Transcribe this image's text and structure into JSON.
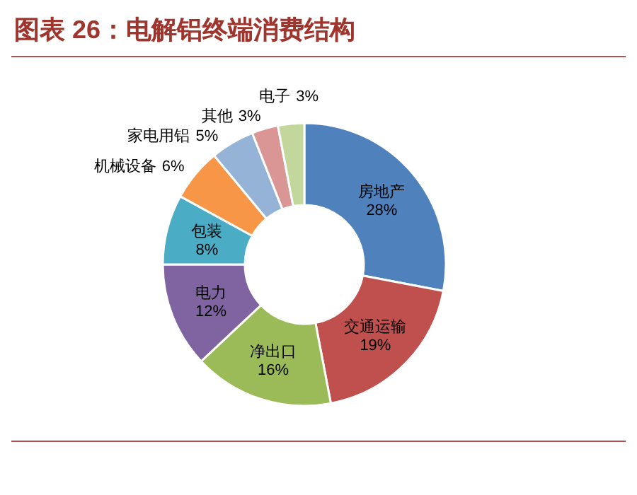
{
  "chart_data": {
    "type": "donut",
    "title": "图表 26：电解铝终端消费结构",
    "categories": [
      "房地产",
      "交通运输",
      "净出口",
      "电力",
      "包装",
      "机械设备",
      "家电用铝",
      "其他",
      "电子"
    ],
    "values": [
      28,
      19,
      16,
      12,
      8,
      6,
      5,
      3,
      3
    ],
    "colors": [
      "#4f81bd",
      "#c0504d",
      "#9bbb59",
      "#8064a2",
      "#4bacc6",
      "#f79646",
      "#95b3d7",
      "#d99694",
      "#c3d69b"
    ],
    "value_labels": [
      "28%",
      "19%",
      "16%",
      "12%",
      "8%",
      "6%",
      "5%",
      "3%",
      "3%"
    ]
  }
}
